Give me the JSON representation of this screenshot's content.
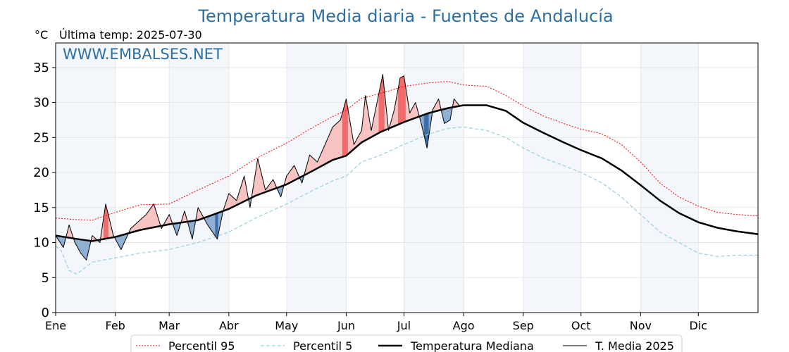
{
  "chart_data": {
    "type": "line",
    "title": "Temperatura Media diaria - Fuentes de Andalucía",
    "unit_label": "°C",
    "last_temp_label": "Última temp: 2025-07-30",
    "watermark": "WWW.EMBALSES.NET",
    "ylim": [
      0,
      38.5
    ],
    "yticks": [
      0,
      5,
      10,
      15,
      20,
      25,
      30,
      35
    ],
    "xlim_day_of_year": [
      1,
      366
    ],
    "months": [
      {
        "label": "Ene",
        "day": 1
      },
      {
        "label": "Feb",
        "day": 32
      },
      {
        "label": "Mar",
        "day": 60
      },
      {
        "label": "Abr",
        "day": 91
      },
      {
        "label": "May",
        "day": 121
      },
      {
        "label": "Jun",
        "day": 152
      },
      {
        "label": "Jul",
        "day": 182
      },
      {
        "label": "Ago",
        "day": 213
      },
      {
        "label": "Sep",
        "day": 244
      },
      {
        "label": "Oct",
        "day": 274
      },
      {
        "label": "Nov",
        "day": 305
      },
      {
        "label": "Dic",
        "day": 335
      }
    ],
    "grid": true,
    "legend_position": "bottom",
    "series": [
      {
        "name": "Percentil 95",
        "color": "#ff0000",
        "style": "dotted",
        "x": [
          1,
          10,
          20,
          32,
          45,
          60,
          75,
          91,
          105,
          121,
          135,
          145,
          152,
          160,
          170,
          182,
          195,
          205,
          213,
          225,
          235,
          244,
          255,
          265,
          274,
          285,
          295,
          305,
          315,
          325,
          335,
          345,
          355,
          366
        ],
        "y": [
          13.5,
          13.3,
          13.2,
          14.3,
          15.4,
          15.5,
          17.5,
          19.5,
          22.0,
          24.2,
          26.5,
          28.0,
          28.9,
          30.6,
          31.3,
          32.3,
          32.8,
          33.0,
          32.5,
          32.3,
          31.0,
          29.5,
          28.0,
          27.0,
          26.2,
          25.5,
          24.0,
          21.5,
          18.5,
          16.5,
          15.2,
          14.3,
          14.0,
          13.8
        ]
      },
      {
        "name": "Percentil 5",
        "color": "#99cfe0",
        "style": "dashed",
        "x": [
          1,
          4,
          8,
          12,
          20,
          32,
          45,
          60,
          75,
          91,
          105,
          121,
          135,
          145,
          152,
          160,
          170,
          182,
          195,
          205,
          213,
          225,
          235,
          244,
          255,
          265,
          274,
          285,
          295,
          305,
          315,
          325,
          335,
          345,
          355,
          366
        ],
        "y": [
          9.5,
          8.8,
          6.0,
          5.5,
          7.2,
          7.8,
          8.5,
          9.0,
          10.0,
          11.5,
          13.5,
          15.5,
          17.5,
          18.8,
          19.5,
          21.5,
          22.5,
          24.0,
          25.5,
          26.3,
          26.5,
          26.0,
          25.0,
          23.5,
          22.0,
          21.0,
          20.0,
          18.5,
          16.5,
          14.0,
          11.5,
          10.0,
          8.5,
          8.0,
          8.2,
          8.2
        ]
      },
      {
        "name": "Temperatura Mediana",
        "color": "#000000",
        "style": "solid-thick",
        "x": [
          1,
          10,
          20,
          32,
          45,
          60,
          75,
          91,
          105,
          121,
          135,
          145,
          152,
          160,
          170,
          182,
          195,
          205,
          213,
          225,
          235,
          244,
          255,
          265,
          274,
          285,
          295,
          305,
          315,
          325,
          335,
          345,
          355,
          366
        ],
        "y": [
          11.0,
          10.6,
          10.2,
          10.8,
          11.8,
          12.6,
          13.2,
          14.8,
          16.7,
          18.3,
          20.3,
          21.8,
          22.4,
          24.3,
          25.8,
          27.2,
          28.5,
          29.2,
          29.6,
          29.6,
          28.8,
          27.1,
          25.6,
          24.3,
          23.2,
          22.0,
          20.3,
          18.2,
          16.0,
          14.2,
          12.9,
          12.1,
          11.6,
          11.2
        ]
      },
      {
        "name": "T. Media 2025",
        "color": "#000000",
        "style": "solid-thin",
        "x": [
          1,
          5,
          8,
          11,
          14,
          17,
          20,
          24,
          27,
          31,
          35,
          40,
          44,
          48,
          52,
          56,
          60,
          64,
          68,
          72,
          75,
          80,
          85,
          88,
          91,
          95,
          99,
          102,
          106,
          110,
          114,
          118,
          121,
          125,
          129,
          133,
          137,
          141,
          145,
          149,
          152,
          156,
          160,
          162,
          165,
          168,
          171,
          174,
          177,
          180,
          182,
          185,
          188,
          191,
          194,
          197,
          200,
          203,
          206,
          208,
          211
        ],
        "y": [
          11.0,
          9.3,
          12.5,
          10.0,
          8.5,
          7.5,
          11.0,
          10.0,
          15.5,
          11.0,
          9.0,
          12.0,
          13.0,
          14.0,
          15.5,
          12.0,
          14.0,
          11.0,
          14.5,
          10.5,
          15.0,
          12.5,
          10.5,
          14.5,
          17.0,
          16.0,
          19.5,
          15.0,
          22.0,
          17.5,
          19.0,
          16.5,
          19.5,
          21.0,
          18.5,
          22.5,
          21.5,
          24.0,
          26.5,
          27.5,
          30.5,
          24.0,
          26.0,
          31.0,
          26.0,
          30.0,
          34.0,
          26.0,
          29.0,
          33.5,
          33.8,
          28.5,
          30.0,
          27.0,
          23.5,
          29.0,
          30.5,
          27.0,
          27.5,
          30.5,
          29.5
        ]
      }
    ]
  }
}
